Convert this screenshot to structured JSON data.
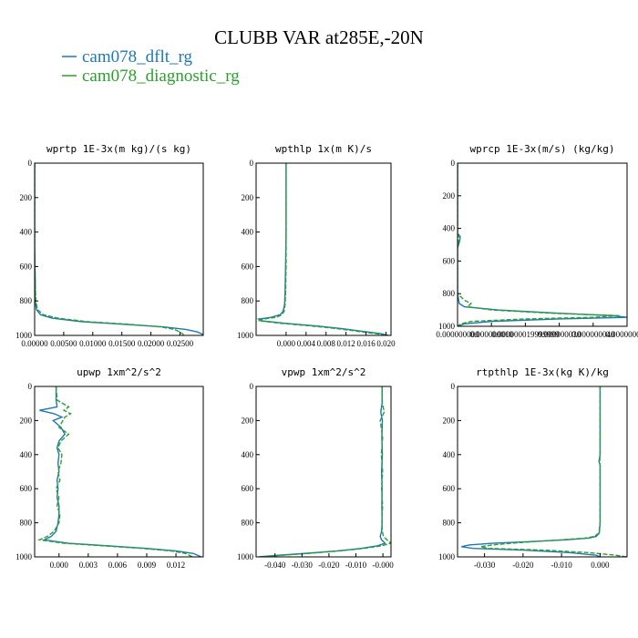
{
  "figure": {
    "title": "CLUBB VAR at285E,-20N",
    "legend": [
      {
        "label": "cam078_dflt_rg",
        "color": "#1f77b4"
      },
      {
        "label": "cam078_diagnostic_rg",
        "color": "#2ca02c"
      }
    ]
  },
  "chart_data": [
    {
      "type": "line",
      "title": "wprtp  1E-3x(m kg)/(s kg)",
      "xlim": [
        0,
        0.029
      ],
      "ylim": [
        1000,
        0
      ],
      "yticks": [
        "0",
        "200",
        "400",
        "600",
        "800",
        "1000"
      ],
      "xticks": [
        {
          "value": 0.0,
          "label": "0.00000"
        },
        {
          "value": 0.005,
          "label": "0.00500"
        },
        {
          "value": 0.01,
          "label": "0.01000"
        },
        {
          "value": 0.015,
          "label": "0.01500"
        },
        {
          "value": 0.02,
          "label": "0.02000"
        },
        {
          "value": 0.025,
          "label": "0.02500"
        }
      ],
      "series": [
        {
          "y": [
            0,
            100,
            300,
            500,
            700,
            800,
            850,
            880,
            900,
            920,
            935,
            950,
            965,
            980,
            992,
            1000
          ],
          "x": [
            0.0,
            0.0,
            0.0,
            0.0,
            0.0001,
            0.0001,
            0.0003,
            0.001,
            0.003,
            0.008,
            0.015,
            0.022,
            0.026,
            0.028,
            0.0288,
            0.0289
          ]
        },
        {
          "y": [
            0,
            100,
            300,
            500,
            700,
            800,
            850,
            880,
            900,
            920,
            935,
            950,
            965,
            980,
            992,
            1000
          ],
          "x": [
            0.0,
            0.0,
            0.0,
            0.0,
            0.0001,
            0.0002,
            0.0005,
            0.0015,
            0.004,
            0.009,
            0.016,
            0.0215,
            0.024,
            0.025,
            0.0255,
            0.0256
          ]
        }
      ]
    },
    {
      "type": "line",
      "title": "wpthlp  1x(m K)/s",
      "xlim": [
        -0.006,
        0.021
      ],
      "ylim": [
        1000,
        0
      ],
      "yticks": [
        "0",
        "200",
        "400",
        "600",
        "800",
        "1000"
      ],
      "xticks": [
        {
          "value": 0.0,
          "label": "0.000"
        },
        {
          "value": 0.004,
          "label": "0.004"
        },
        {
          "value": 0.008,
          "label": "0.008"
        },
        {
          "value": 0.012,
          "label": "0.012"
        },
        {
          "value": 0.016,
          "label": "0.016"
        },
        {
          "value": 0.02,
          "label": "0.020"
        }
      ],
      "series": [
        {
          "y": [
            0,
            200,
            400,
            600,
            750,
            820,
            860,
            880,
            895,
            905,
            915,
            930,
            945,
            960,
            975,
            990,
            1000
          ],
          "x": [
            0.0,
            0.0,
            0.0,
            -0.0001,
            -0.0002,
            -0.0003,
            -0.0006,
            -0.0012,
            -0.003,
            -0.0055,
            -0.005,
            0.0,
            0.006,
            0.011,
            0.015,
            0.019,
            0.0205
          ]
        },
        {
          "y": [
            0,
            200,
            400,
            600,
            750,
            820,
            860,
            880,
            895,
            905,
            915,
            930,
            945,
            960,
            975,
            990,
            1000
          ],
          "x": [
            0.0,
            0.0,
            0.0,
            0.0,
            -0.0001,
            -0.0002,
            -0.0004,
            -0.0008,
            -0.002,
            -0.0045,
            -0.0055,
            -0.001,
            0.005,
            0.01,
            0.014,
            0.018,
            0.02
          ]
        }
      ]
    },
    {
      "type": "line",
      "title": "wprcp  1E-3x(m/s) (kg/kg)",
      "xlim": [
        0,
        5e-08
      ],
      "ylim": [
        1000,
        0
      ],
      "yticks": [
        "0",
        "200",
        "400",
        "600",
        "800",
        "1000"
      ],
      "xticks": [
        {
          "value": 0.0,
          "label": "0.000000000"
        },
        {
          "value": 1e-08,
          "label": "0.000000010"
        },
        {
          "value": 2e-08,
          "label": "0.000000019999999"
        },
        {
          "value": 3e-08,
          "label": "0.000000030"
        },
        {
          "value": 4e-08,
          "label": "0.000000040"
        },
        {
          "value": 5e-08,
          "label": "0.000000050"
        }
      ],
      "series": [
        {
          "y": [
            0,
            300,
            430,
            450,
            480,
            520,
            600,
            800,
            860,
            880,
            900,
            920,
            935,
            945,
            955,
            970,
            985,
            1000
          ],
          "x": [
            0.0,
            0.0,
            0.0,
            8e-10,
            6e-10,
            0.0,
            0.0,
            0.0,
            5e-10,
            2e-09,
            1.2e-08,
            3e-08,
            4.6e-08,
            5e-08,
            3e-08,
            1e-08,
            2e-09,
            0.0
          ]
        },
        {
          "y": [
            0,
            300,
            430,
            450,
            480,
            520,
            600,
            800,
            840,
            860,
            880,
            900,
            920,
            935,
            945,
            955,
            970,
            985,
            1000
          ],
          "x": [
            0.0,
            0.0,
            0.0,
            3e-10,
            2e-10,
            0.0,
            0.0,
            0.0,
            2e-09,
            4e-09,
            3e-09,
            1e-08,
            2.8e-08,
            4.8e-08,
            4e-08,
            2e-08,
            4e-09,
            1e-09,
            0.0
          ]
        }
      ]
    },
    {
      "type": "line",
      "title": "upwp  1xm^2/s^2",
      "xlim": [
        -0.0025,
        0.0148
      ],
      "ylim": [
        1000,
        0
      ],
      "yticks": [
        "0",
        "200",
        "400",
        "600",
        "800",
        "1000"
      ],
      "xticks": [
        {
          "value": 0.0,
          "label": "0.000"
        },
        {
          "value": 0.003,
          "label": "0.003"
        },
        {
          "value": 0.006,
          "label": "0.006"
        },
        {
          "value": 0.009,
          "label": "0.009"
        },
        {
          "value": 0.012,
          "label": "0.012"
        }
      ],
      "series": [
        {
          "y": [
            0,
            80,
            120,
            140,
            160,
            180,
            200,
            240,
            280,
            320,
            360,
            400,
            450,
            500,
            550,
            600,
            650,
            700,
            750,
            800,
            850,
            880,
            900,
            920,
            935,
            950,
            965,
            980,
            1000
          ],
          "x": [
            -0.0003,
            -0.0003,
            -0.0002,
            -0.002,
            -0.0005,
            0.0003,
            -0.0006,
            0.0002,
            0.0006,
            0.0,
            -0.0002,
            0.0,
            -0.0001,
            0.0,
            -0.0002,
            -0.0001,
            -0.0002,
            0.0,
            0.0,
            -0.0001,
            -0.0003,
            -0.0008,
            -0.0015,
            0.001,
            0.005,
            0.009,
            0.012,
            0.0138,
            0.0146
          ]
        },
        {
          "y": [
            0,
            80,
            120,
            140,
            160,
            180,
            200,
            240,
            280,
            320,
            360,
            400,
            450,
            500,
            550,
            600,
            650,
            700,
            750,
            800,
            850,
            880,
            900,
            920,
            935,
            950,
            965,
            980,
            1000
          ],
          "x": [
            -0.0003,
            -0.0002,
            0.001,
            0.0005,
            0.0012,
            0.0006,
            0.0004,
            0.0,
            0.001,
            0.0002,
            -0.0001,
            0.0003,
            0.0002,
            -0.0001,
            0.0001,
            -0.0003,
            0.0,
            -0.0002,
            0.0001,
            0.0,
            -0.0005,
            -0.0012,
            -0.002,
            0.0005,
            0.0045,
            0.0085,
            0.0115,
            0.013,
            0.0137
          ]
        }
      ]
    },
    {
      "type": "line",
      "title": "vpwp  1xm^2/s^2",
      "xlim": [
        -0.047,
        0.003
      ],
      "ylim": [
        1000,
        0
      ],
      "yticks": [
        "0",
        "200",
        "400",
        "600",
        "800",
        "1000"
      ],
      "xticks": [
        {
          "value": -0.04,
          "label": "-0.040"
        },
        {
          "value": -0.03,
          "label": "-0.030"
        },
        {
          "value": -0.02,
          "label": "-0.020"
        },
        {
          "value": -0.01,
          "label": "-0.010"
        },
        {
          "value": 0.0,
          "label": "-0.000"
        }
      ],
      "series": [
        {
          "y": [
            0,
            100,
            150,
            200,
            300,
            400,
            500,
            600,
            700,
            800,
            850,
            880,
            900,
            920,
            935,
            950,
            965,
            980,
            992,
            1000
          ],
          "x": [
            -0.0003,
            -0.0003,
            -0.0008,
            -0.0002,
            -0.0004,
            -0.0002,
            -0.0005,
            -0.0003,
            -0.0004,
            -0.0003,
            -0.0005,
            -0.001,
            -0.0005,
            0.0008,
            -0.002,
            -0.008,
            -0.017,
            -0.029,
            -0.04,
            -0.046
          ]
        },
        {
          "y": [
            0,
            100,
            150,
            200,
            300,
            400,
            500,
            600,
            700,
            800,
            850,
            880,
            900,
            920,
            935,
            950,
            965,
            980,
            992,
            1000
          ],
          "x": [
            -0.0003,
            -0.0002,
            0.0005,
            -0.001,
            -0.0001,
            -0.0006,
            -0.0001,
            -0.0005,
            -0.0001,
            -0.0004,
            -0.0002,
            0.0002,
            0.0015,
            0.003,
            -0.0005,
            -0.007,
            -0.016,
            -0.028,
            -0.039,
            -0.045
          ]
        }
      ]
    },
    {
      "type": "line",
      "title": "rtpthlp  1E-3x(kg K)/kg",
      "xlim": [
        -0.037,
        0.007
      ],
      "ylim": [
        1000,
        0
      ],
      "yticks": [
        "0",
        "200",
        "400",
        "600",
        "800",
        "1000"
      ],
      "xticks": [
        {
          "value": -0.03,
          "label": "-0.030"
        },
        {
          "value": -0.02,
          "label": "-0.020"
        },
        {
          "value": -0.01,
          "label": "-0.010"
        },
        {
          "value": 0.0,
          "label": "0.000"
        }
      ],
      "series": [
        {
          "y": [
            0,
            200,
            400,
            440,
            460,
            480,
            600,
            800,
            860,
            880,
            890,
            900,
            910,
            920,
            930,
            940,
            950,
            960,
            975,
            990,
            1000
          ],
          "x": [
            0.0,
            0.0,
            0.0,
            -0.0003,
            0.0,
            0.0,
            0.0,
            0.0,
            -0.0002,
            -0.001,
            -0.003,
            -0.009,
            -0.018,
            -0.028,
            -0.034,
            -0.036,
            -0.033,
            -0.02,
            -0.008,
            -0.001,
            0.0
          ]
        },
        {
          "y": [
            0,
            200,
            400,
            440,
            460,
            480,
            600,
            800,
            860,
            880,
            890,
            900,
            910,
            920,
            930,
            940,
            950,
            960,
            975,
            990,
            1000
          ],
          "x": [
            0.0,
            0.0,
            0.0,
            -0.0001,
            0.0,
            0.0,
            0.0,
            0.0,
            -0.0003,
            -0.0015,
            -0.004,
            -0.01,
            -0.017,
            -0.023,
            -0.028,
            -0.031,
            -0.029,
            -0.015,
            -0.003,
            0.004,
            0.007
          ]
        }
      ]
    }
  ]
}
